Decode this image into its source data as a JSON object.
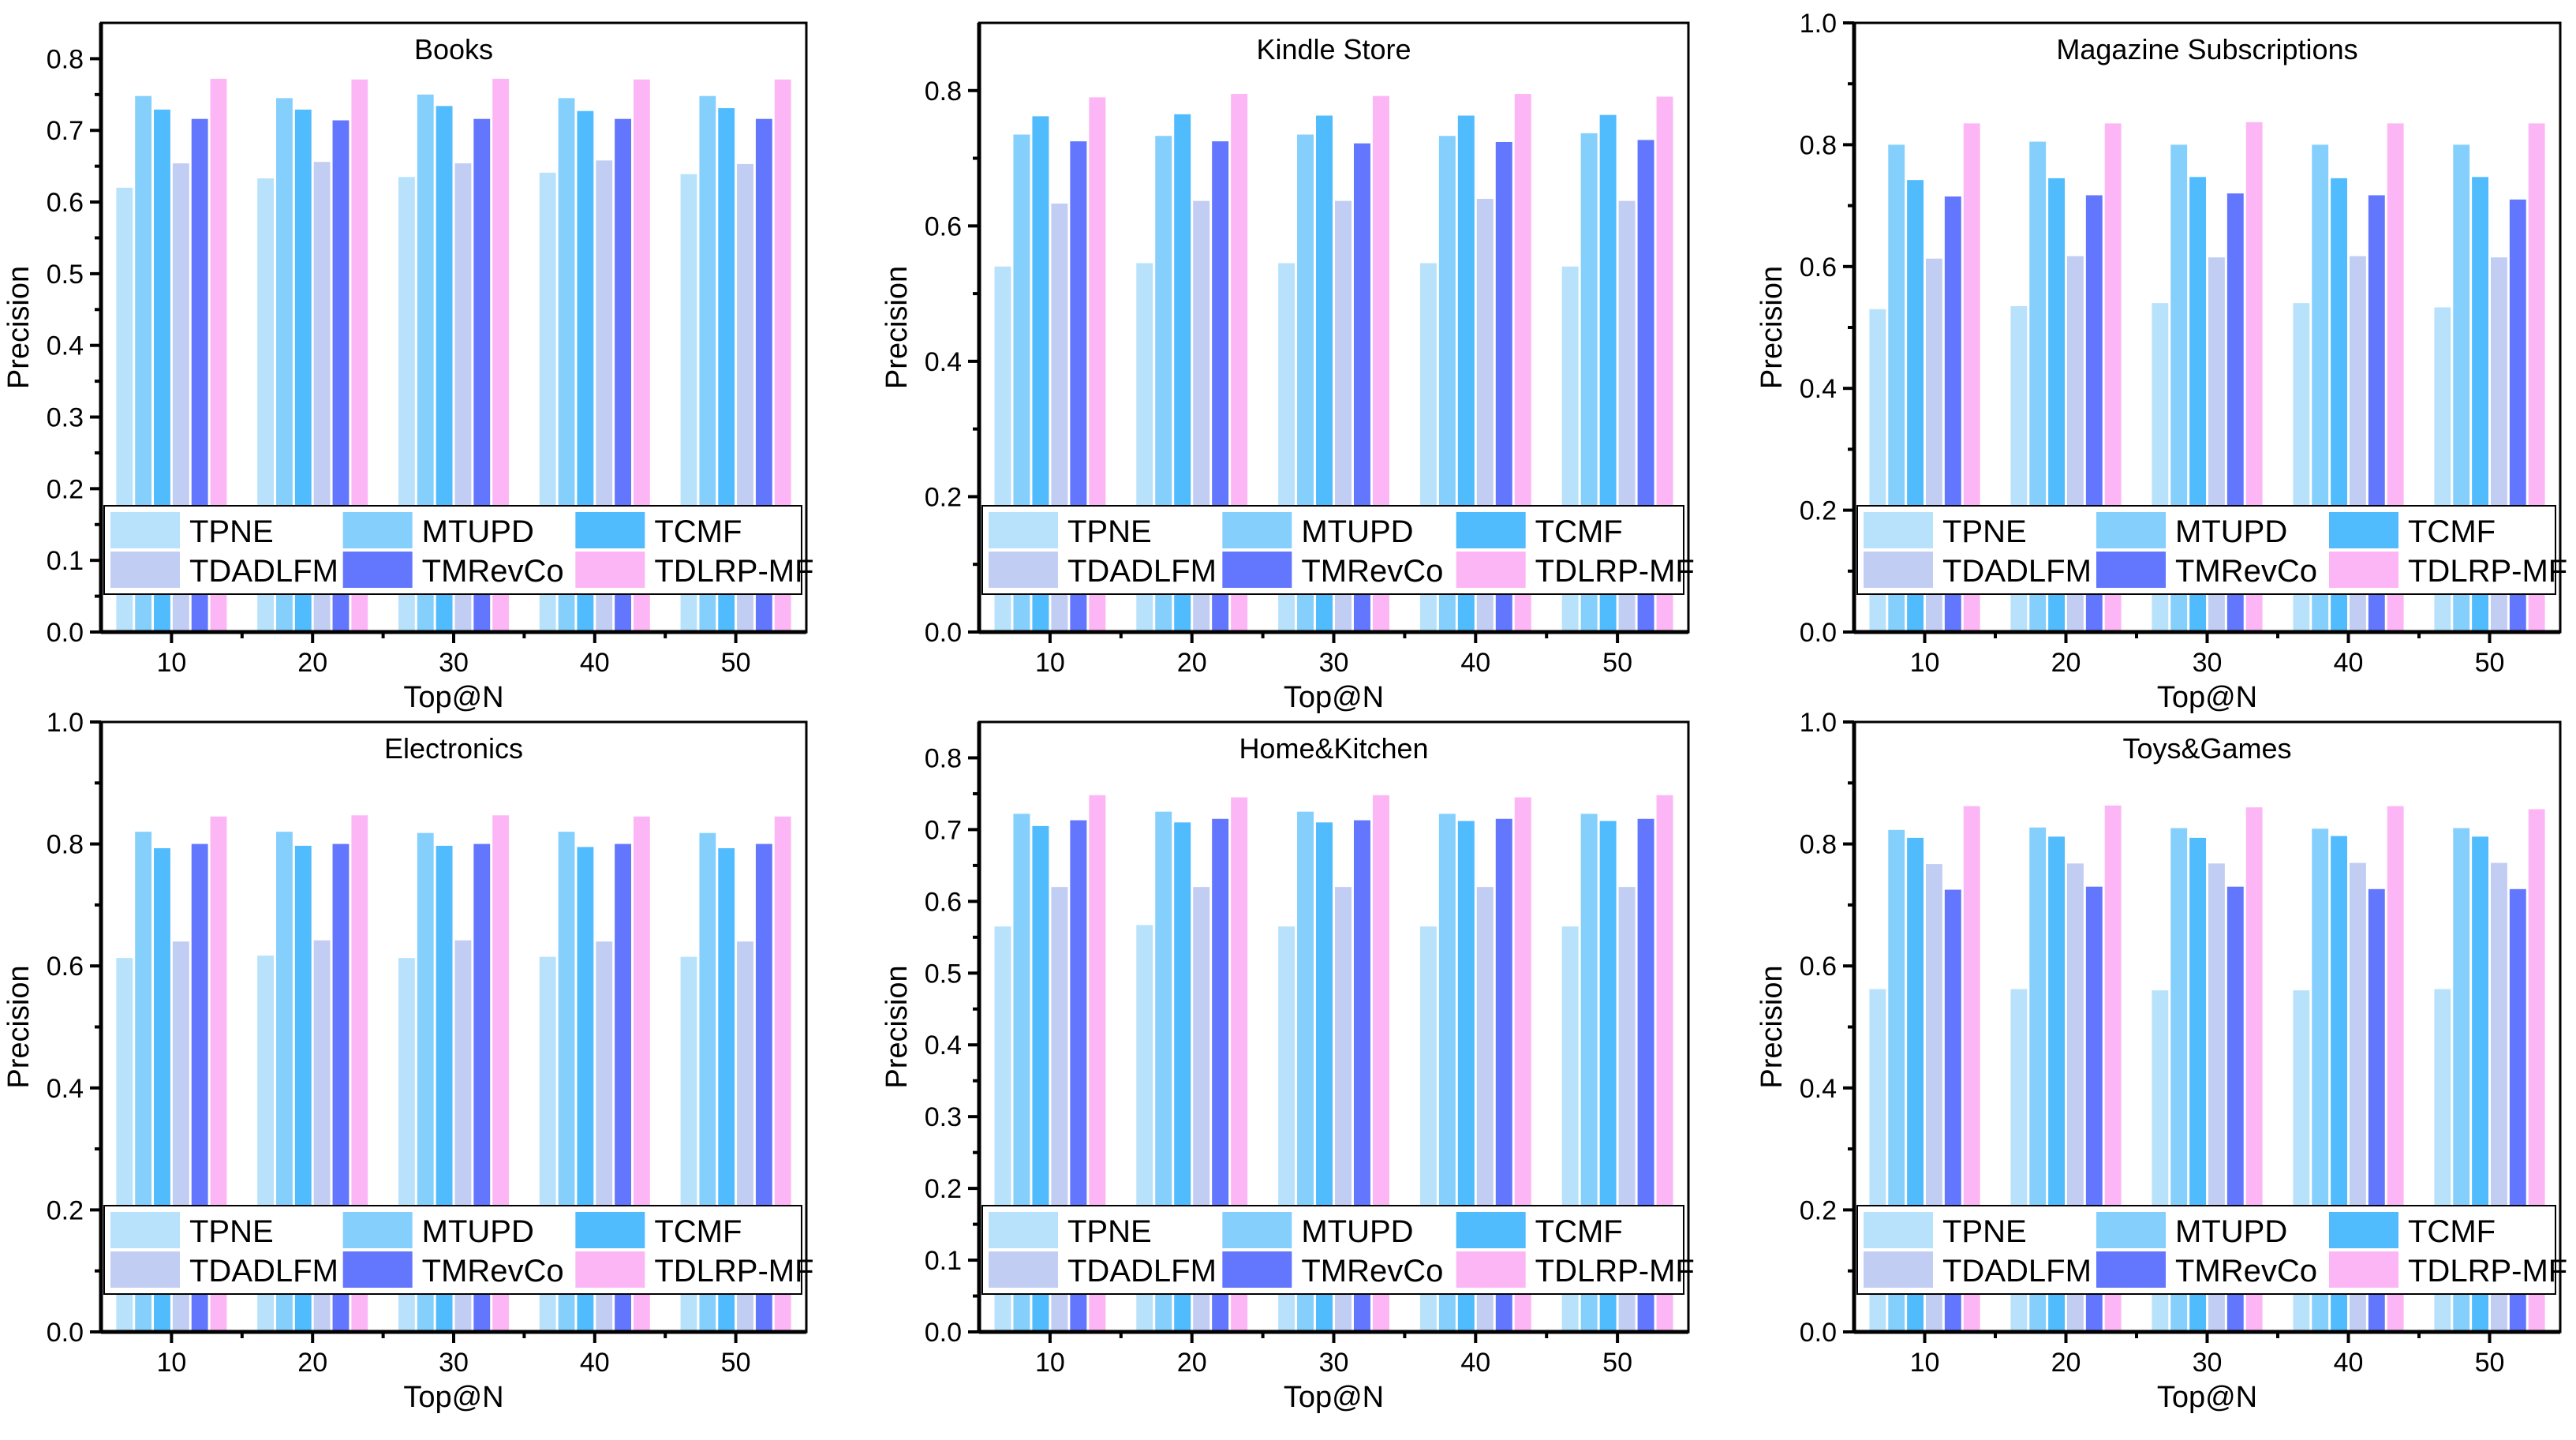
{
  "chart_data": [
    {
      "type": "bar",
      "title": "Books",
      "xlabel": "Top@N",
      "ylabel": "Precision",
      "ylim": [
        0,
        0.85
      ],
      "yticks": [
        "0.0",
        "0.1",
        "0.2",
        "0.3",
        "0.4",
        "0.5",
        "0.6",
        "0.7",
        "0.8"
      ],
      "ytick_values": [
        0,
        0.1,
        0.2,
        0.3,
        0.4,
        0.5,
        0.6,
        0.7,
        0.8
      ],
      "categories": [
        "10",
        "20",
        "30",
        "40",
        "50"
      ],
      "legend_position": "bottom",
      "series": [
        {
          "name": "TPNE",
          "values": [
            0.62,
            0.633,
            0.635,
            0.641,
            0.639
          ]
        },
        {
          "name": "MTUPD",
          "values": [
            0.748,
            0.745,
            0.75,
            0.745,
            0.748
          ]
        },
        {
          "name": "TCMF",
          "values": [
            0.729,
            0.729,
            0.734,
            0.727,
            0.731
          ]
        },
        {
          "name": "TDADLFM",
          "values": [
            0.654,
            0.656,
            0.654,
            0.658,
            0.653
          ]
        },
        {
          "name": "TMRevCo",
          "values": [
            0.716,
            0.714,
            0.716,
            0.716,
            0.716
          ]
        },
        {
          "name": "TDLRP-MF",
          "values": [
            0.772,
            0.771,
            0.772,
            0.771,
            0.771
          ]
        }
      ]
    },
    {
      "type": "bar",
      "title": "Kindle Store",
      "xlabel": "Top@N",
      "ylabel": "Precision",
      "ylim": [
        0,
        0.9
      ],
      "yticks": [
        "0.0",
        "0.2",
        "0.4",
        "0.6",
        "0.8"
      ],
      "ytick_values": [
        0,
        0.2,
        0.4,
        0.6,
        0.8
      ],
      "categories": [
        "10",
        "20",
        "30",
        "40",
        "50"
      ],
      "legend_position": "bottom",
      "series": [
        {
          "name": "TPNE",
          "values": [
            0.54,
            0.545,
            0.545,
            0.545,
            0.54
          ]
        },
        {
          "name": "MTUPD",
          "values": [
            0.735,
            0.733,
            0.735,
            0.733,
            0.737
          ]
        },
        {
          "name": "TCMF",
          "values": [
            0.762,
            0.765,
            0.763,
            0.763,
            0.764
          ]
        },
        {
          "name": "TDADLFM",
          "values": [
            0.633,
            0.637,
            0.637,
            0.64,
            0.637
          ]
        },
        {
          "name": "TMRevCo",
          "values": [
            0.725,
            0.725,
            0.722,
            0.724,
            0.727
          ]
        },
        {
          "name": "TDLRP-MF",
          "values": [
            0.79,
            0.795,
            0.792,
            0.795,
            0.791
          ]
        }
      ]
    },
    {
      "type": "bar",
      "title": "Magazine Subscriptions",
      "xlabel": "Top@N",
      "ylabel": "Precision",
      "ylim": [
        0,
        1.0
      ],
      "yticks": [
        "0.0",
        "0.2",
        "0.4",
        "0.6",
        "0.8",
        "1.0"
      ],
      "ytick_values": [
        0,
        0.2,
        0.4,
        0.6,
        0.8,
        1.0
      ],
      "categories": [
        "10",
        "20",
        "30",
        "40",
        "50"
      ],
      "legend_position": "bottom",
      "series": [
        {
          "name": "TPNE",
          "values": [
            0.53,
            0.535,
            0.54,
            0.54,
            0.533
          ]
        },
        {
          "name": "MTUPD",
          "values": [
            0.8,
            0.805,
            0.8,
            0.8,
            0.8
          ]
        },
        {
          "name": "TCMF",
          "values": [
            0.742,
            0.745,
            0.747,
            0.745,
            0.747
          ]
        },
        {
          "name": "TDADLFM",
          "values": [
            0.613,
            0.617,
            0.615,
            0.617,
            0.615
          ]
        },
        {
          "name": "TMRevCo",
          "values": [
            0.715,
            0.717,
            0.72,
            0.717,
            0.71
          ]
        },
        {
          "name": "TDLRP-MF",
          "values": [
            0.835,
            0.835,
            0.837,
            0.835,
            0.835
          ]
        }
      ]
    },
    {
      "type": "bar",
      "title": "Electronics",
      "xlabel": "Top@N",
      "ylabel": "Precision",
      "ylim": [
        0,
        1.0
      ],
      "yticks": [
        "0.0",
        "0.2",
        "0.4",
        "0.6",
        "0.8",
        "1.0"
      ],
      "ytick_values": [
        0,
        0.2,
        0.4,
        0.6,
        0.8,
        1.0
      ],
      "categories": [
        "10",
        "20",
        "30",
        "40",
        "50"
      ],
      "legend_position": "bottom",
      "series": [
        {
          "name": "TPNE",
          "values": [
            0.613,
            0.617,
            0.613,
            0.615,
            0.615
          ]
        },
        {
          "name": "MTUPD",
          "values": [
            0.82,
            0.82,
            0.818,
            0.82,
            0.818
          ]
        },
        {
          "name": "TCMF",
          "values": [
            0.793,
            0.797,
            0.797,
            0.795,
            0.793
          ]
        },
        {
          "name": "TDADLFM",
          "values": [
            0.64,
            0.642,
            0.642,
            0.64,
            0.64
          ]
        },
        {
          "name": "TMRevCo",
          "values": [
            0.8,
            0.8,
            0.8,
            0.8,
            0.8
          ]
        },
        {
          "name": "TDLRP-MF",
          "values": [
            0.845,
            0.847,
            0.847,
            0.845,
            0.845
          ]
        }
      ]
    },
    {
      "type": "bar",
      "title": "Home&Kitchen",
      "xlabel": "Top@N",
      "ylabel": "Precision",
      "ylim": [
        0,
        0.85
      ],
      "yticks": [
        "0.0",
        "0.1",
        "0.2",
        "0.3",
        "0.4",
        "0.5",
        "0.6",
        "0.7",
        "0.8"
      ],
      "ytick_values": [
        0,
        0.1,
        0.2,
        0.3,
        0.4,
        0.5,
        0.6,
        0.7,
        0.8
      ],
      "categories": [
        "10",
        "20",
        "30",
        "40",
        "50"
      ],
      "legend_position": "bottom",
      "series": [
        {
          "name": "TPNE",
          "values": [
            0.565,
            0.567,
            0.565,
            0.565,
            0.565
          ]
        },
        {
          "name": "MTUPD",
          "values": [
            0.722,
            0.725,
            0.725,
            0.722,
            0.722
          ]
        },
        {
          "name": "TCMF",
          "values": [
            0.705,
            0.71,
            0.71,
            0.712,
            0.712
          ]
        },
        {
          "name": "TDADLFM",
          "values": [
            0.62,
            0.62,
            0.62,
            0.62,
            0.62
          ]
        },
        {
          "name": "TMRevCo",
          "values": [
            0.713,
            0.715,
            0.713,
            0.715,
            0.715
          ]
        },
        {
          "name": "TDLRP-MF",
          "values": [
            0.748,
            0.745,
            0.748,
            0.745,
            0.748
          ]
        }
      ]
    },
    {
      "type": "bar",
      "title": "Toys&Games",
      "xlabel": "Top@N",
      "ylabel": "Precision",
      "ylim": [
        0,
        1.0
      ],
      "yticks": [
        "0.0",
        "0.2",
        "0.4",
        "0.6",
        "0.8",
        "1.0"
      ],
      "ytick_values": [
        0,
        0.2,
        0.4,
        0.6,
        0.8,
        1.0
      ],
      "categories": [
        "10",
        "20",
        "30",
        "40",
        "50"
      ],
      "legend_position": "bottom",
      "series": [
        {
          "name": "TPNE",
          "values": [
            0.562,
            0.562,
            0.56,
            0.56,
            0.562
          ]
        },
        {
          "name": "MTUPD",
          "values": [
            0.823,
            0.827,
            0.826,
            0.825,
            0.826
          ]
        },
        {
          "name": "TCMF",
          "values": [
            0.81,
            0.812,
            0.81,
            0.813,
            0.812
          ]
        },
        {
          "name": "TDADLFM",
          "values": [
            0.767,
            0.768,
            0.768,
            0.769,
            0.769
          ]
        },
        {
          "name": "TMRevCo",
          "values": [
            0.725,
            0.73,
            0.73,
            0.726,
            0.726
          ]
        },
        {
          "name": "TDLRP-MF",
          "values": [
            0.862,
            0.863,
            0.86,
            0.862,
            0.857
          ]
        }
      ]
    }
  ],
  "colors": {
    "TPNE": "#b8e2fc",
    "MTUPD": "#85cffd",
    "TCMF": "#50bbfd",
    "TDADLFM": "#c1cdf3",
    "TMRevCo": "#6276fe",
    "TDLRP-MF": "#fcb6f5"
  }
}
